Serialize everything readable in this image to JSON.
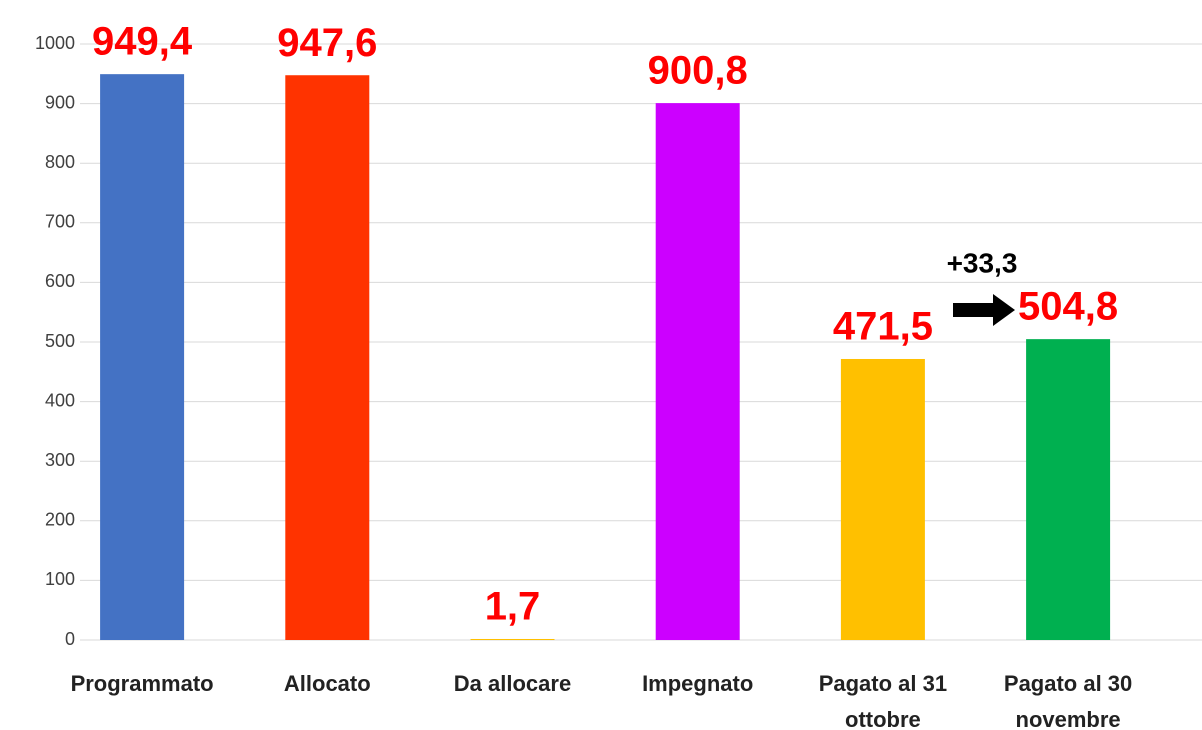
{
  "chart_data": {
    "type": "bar",
    "categories": [
      "Programmato",
      "Allocato",
      "Da allocare",
      "Impegnato",
      "Pagato al 31 ottobre",
      "Pagato al 30 novembre"
    ],
    "values": [
      949.4,
      947.6,
      1.7,
      900.8,
      471.5,
      504.8
    ],
    "value_labels": [
      "949,4",
      "947,6",
      "1,7",
      "900,8",
      "471,5",
      "504,8"
    ],
    "colors": [
      "#4472c4",
      "#ff3300",
      "#ffc000",
      "#cc00ff",
      "#ffc000",
      "#00b050"
    ],
    "ylim": [
      0,
      1000
    ],
    "yticks": [
      0,
      100,
      200,
      300,
      400,
      500,
      600,
      700,
      800,
      900,
      1000
    ],
    "grid": true,
    "annotations": [
      {
        "text": "+33,3"
      }
    ]
  }
}
